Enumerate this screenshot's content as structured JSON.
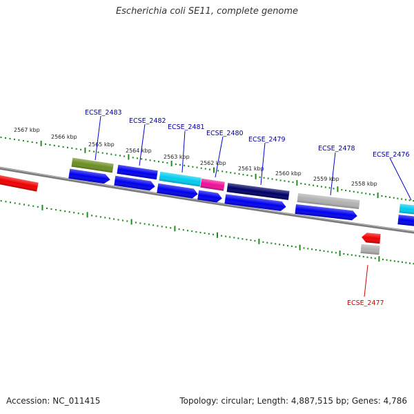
{
  "title": "Escherichia coli SE11, complete genome",
  "footer": {
    "accession": "Accession: NC_011415",
    "summary": "Topology: circular; Length: 4,887,515 bp; Genes: 4,786"
  },
  "colors": {
    "forward_cds": "#0000ee",
    "backbone": "#7a7a7a",
    "tick_mark": "#1f8a1f",
    "label_forward": "#000099",
    "label_reverse": "#cc0000",
    "reverse_feature": "#ee0000",
    "olive_feature": "#6b8e23",
    "cyan_feature": "#00ccee",
    "magenta_feature": "#ee1199",
    "navy_feature": "#000066",
    "gray_feature": "#b0b0b0"
  },
  "position_labels": [
    "2567 kbp",
    "2566 kbp",
    "2565 kbp",
    "2564 kbp",
    "2563 kbp",
    "2562 kbp",
    "2561 kbp",
    "2560 kbp",
    "2559 kbp",
    "2558 kbp"
  ],
  "gene_labels": [
    {
      "name": "ECSE_2483",
      "strand": "forward"
    },
    {
      "name": "ECSE_2482",
      "strand": "forward"
    },
    {
      "name": "ECSE_2481",
      "strand": "forward"
    },
    {
      "name": "ECSE_2480",
      "strand": "forward"
    },
    {
      "name": "ECSE_2479",
      "strand": "forward"
    },
    {
      "name": "ECSE_2478",
      "strand": "forward"
    },
    {
      "name": "ECSE_2476",
      "strand": "forward"
    },
    {
      "name": "ECSE_2477",
      "strand": "reverse"
    }
  ]
}
